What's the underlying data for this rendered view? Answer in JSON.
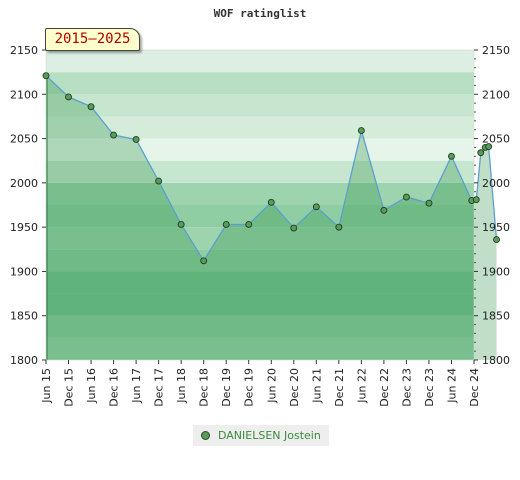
{
  "chart_data": {
    "type": "area",
    "title": "WOF ratinglist",
    "badge": "2015–2025",
    "ylim": [
      1800,
      2150
    ],
    "yticks": [
      1800,
      1850,
      1900,
      1950,
      2000,
      2050,
      2100,
      2150
    ],
    "xticks": [
      "Jun 15",
      "Dec 15",
      "Jun 16",
      "Dec 16",
      "Jun 17",
      "Dec 17",
      "Jun 18",
      "Dec 18",
      "Dec 19",
      "Dec 19",
      "Jun 20",
      "Dec 20",
      "Jun 21",
      "Dec 21",
      "Jun 22",
      "Dec 22",
      "Dec 23",
      "Dec 23",
      "Jun 24",
      "Dec 24"
    ],
    "series": [
      {
        "name": "DANIELSEN Jostein",
        "color": "#5a9a5a",
        "x": [
          0,
          1,
          2,
          3,
          4,
          5,
          6,
          7,
          8,
          9,
          10,
          11,
          12,
          13,
          14,
          15,
          16,
          17,
          18,
          18.9,
          19.1,
          19.3,
          19.5,
          19.65,
          20
        ],
        "values": [
          2121,
          2097,
          2086,
          2054,
          2049,
          2002,
          1953,
          1912,
          1953,
          1953,
          1978,
          1949,
          1973,
          1950,
          2059,
          1969,
          1984,
          1977,
          2030,
          1980,
          1981,
          2034,
          2040,
          2041,
          1936
        ]
      }
    ],
    "grid": true,
    "legend_position": "bottom-center"
  }
}
